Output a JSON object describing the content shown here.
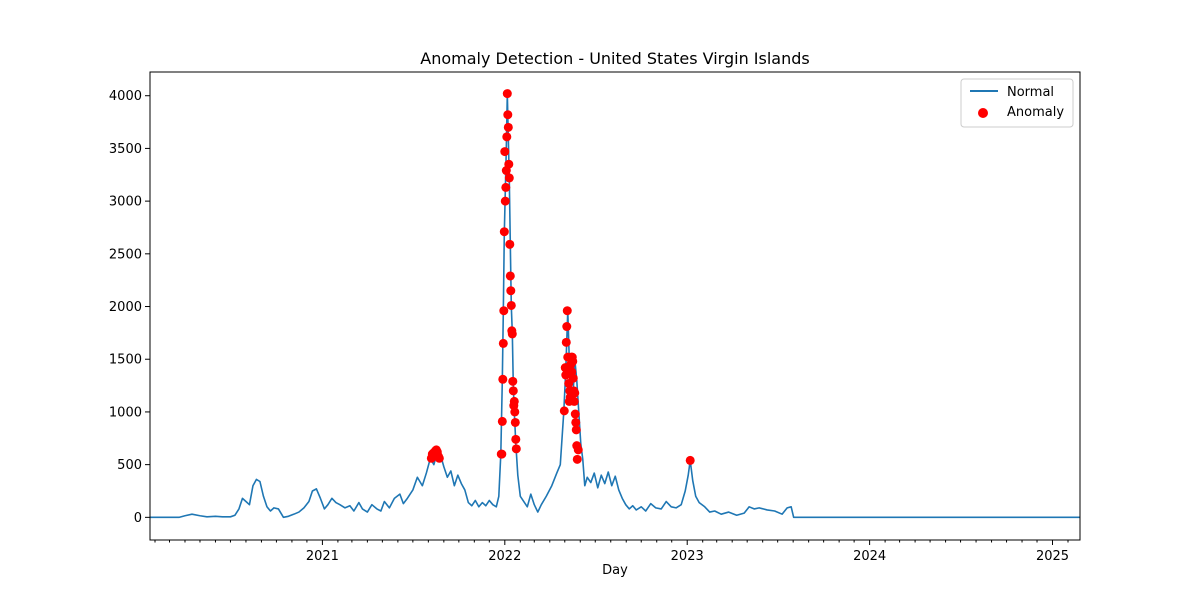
{
  "chart_data": {
    "type": "line",
    "title": "Anomaly Detection - United States Virgin Islands",
    "xlabel": "Day",
    "ylabel": "",
    "x_axis": "date",
    "xlim": [
      "2020-01-22",
      "2025-02-25"
    ],
    "ylim": [
      -215,
      4225
    ],
    "x_ticks": [
      "2021",
      "2022",
      "2023",
      "2024",
      "2025"
    ],
    "y_ticks": [
      0,
      500,
      1000,
      1500,
      2000,
      2500,
      3000,
      3500,
      4000
    ],
    "grid": false,
    "legend": {
      "position": "upper right"
    },
    "colors": {
      "normal": "#1f77b4",
      "anomaly": "#ff0000"
    },
    "series": [
      {
        "name": "Normal",
        "kind": "line",
        "points": [
          [
            "2020-01-22",
            0
          ],
          [
            "2020-03-20",
            0
          ],
          [
            "2020-04-01",
            15
          ],
          [
            "2020-04-15",
            30
          ],
          [
            "2020-05-01",
            15
          ],
          [
            "2020-05-15",
            5
          ],
          [
            "2020-06-01",
            10
          ],
          [
            "2020-06-15",
            5
          ],
          [
            "2020-07-01",
            5
          ],
          [
            "2020-07-10",
            20
          ],
          [
            "2020-07-18",
            80
          ],
          [
            "2020-07-25",
            180
          ],
          [
            "2020-08-01",
            150
          ],
          [
            "2020-08-08",
            120
          ],
          [
            "2020-08-15",
            300
          ],
          [
            "2020-08-22",
            360
          ],
          [
            "2020-08-29",
            340
          ],
          [
            "2020-09-05",
            200
          ],
          [
            "2020-09-12",
            100
          ],
          [
            "2020-09-19",
            60
          ],
          [
            "2020-09-26",
            90
          ],
          [
            "2020-10-05",
            80
          ],
          [
            "2020-10-15",
            0
          ],
          [
            "2020-10-25",
            10
          ],
          [
            "2020-11-05",
            30
          ],
          [
            "2020-11-15",
            50
          ],
          [
            "2020-11-25",
            90
          ],
          [
            "2020-12-05",
            150
          ],
          [
            "2020-12-12",
            250
          ],
          [
            "2020-12-20",
            270
          ],
          [
            "2020-12-28",
            180
          ],
          [
            "2021-01-05",
            80
          ],
          [
            "2021-01-12",
            120
          ],
          [
            "2021-01-20",
            180
          ],
          [
            "2021-01-28",
            140
          ],
          [
            "2021-02-05",
            120
          ],
          [
            "2021-02-15",
            90
          ],
          [
            "2021-02-25",
            110
          ],
          [
            "2021-03-05",
            60
          ],
          [
            "2021-03-15",
            140
          ],
          [
            "2021-03-22",
            80
          ],
          [
            "2021-04-01",
            50
          ],
          [
            "2021-04-10",
            120
          ],
          [
            "2021-04-20",
            80
          ],
          [
            "2021-04-28",
            60
          ],
          [
            "2021-05-05",
            150
          ],
          [
            "2021-05-15",
            90
          ],
          [
            "2021-05-25",
            180
          ],
          [
            "2021-06-05",
            220
          ],
          [
            "2021-06-12",
            130
          ],
          [
            "2021-06-20",
            180
          ],
          [
            "2021-07-01",
            260
          ],
          [
            "2021-07-10",
            380
          ],
          [
            "2021-07-20",
            300
          ],
          [
            "2021-07-28",
            420
          ],
          [
            "2021-08-05",
            560
          ],
          [
            "2021-08-12",
            500
          ],
          [
            "2021-08-19",
            620
          ],
          [
            "2021-08-26",
            580
          ],
          [
            "2021-09-01",
            480
          ],
          [
            "2021-09-08",
            380
          ],
          [
            "2021-09-15",
            440
          ],
          [
            "2021-09-22",
            300
          ],
          [
            "2021-09-29",
            400
          ],
          [
            "2021-10-06",
            320
          ],
          [
            "2021-10-13",
            260
          ],
          [
            "2021-10-20",
            140
          ],
          [
            "2021-10-27",
            110
          ],
          [
            "2021-11-03",
            160
          ],
          [
            "2021-11-10",
            100
          ],
          [
            "2021-11-17",
            140
          ],
          [
            "2021-11-24",
            110
          ],
          [
            "2021-12-01",
            160
          ],
          [
            "2021-12-08",
            120
          ],
          [
            "2021-12-15",
            100
          ],
          [
            "2021-12-20",
            200
          ],
          [
            "2021-12-24",
            600
          ],
          [
            "2021-12-27",
            1300
          ],
          [
            "2021-12-29",
            1950
          ],
          [
            "2021-12-31",
            2700
          ],
          [
            "2022-01-02",
            3100
          ],
          [
            "2022-01-04",
            3500
          ],
          [
            "2022-01-06",
            4020
          ],
          [
            "2022-01-08",
            3600
          ],
          [
            "2022-01-10",
            3200
          ],
          [
            "2022-01-12",
            2590
          ],
          [
            "2022-01-14",
            2000
          ],
          [
            "2022-01-16",
            1750
          ],
          [
            "2022-01-18",
            1250
          ],
          [
            "2022-01-20",
            1000
          ],
          [
            "2022-01-23",
            700
          ],
          [
            "2022-01-27",
            400
          ],
          [
            "2022-02-01",
            200
          ],
          [
            "2022-02-08",
            150
          ],
          [
            "2022-02-15",
            100
          ],
          [
            "2022-02-22",
            220
          ],
          [
            "2022-03-01",
            120
          ],
          [
            "2022-03-08",
            50
          ],
          [
            "2022-03-15",
            120
          ],
          [
            "2022-03-25",
            200
          ],
          [
            "2022-04-05",
            300
          ],
          [
            "2022-04-15",
            420
          ],
          [
            "2022-04-22",
            500
          ],
          [
            "2022-04-29",
            1000
          ],
          [
            "2022-05-03",
            1400
          ],
          [
            "2022-05-07",
            1960
          ],
          [
            "2022-05-10",
            1500
          ],
          [
            "2022-05-13",
            1300
          ],
          [
            "2022-05-17",
            1100
          ],
          [
            "2022-05-21",
            1500
          ],
          [
            "2022-05-25",
            1300
          ],
          [
            "2022-05-29",
            1000
          ],
          [
            "2022-06-02",
            700
          ],
          [
            "2022-06-06",
            550
          ],
          [
            "2022-06-10",
            300
          ],
          [
            "2022-06-15",
            380
          ],
          [
            "2022-06-22",
            330
          ],
          [
            "2022-06-29",
            420
          ],
          [
            "2022-07-06",
            280
          ],
          [
            "2022-07-13",
            400
          ],
          [
            "2022-07-20",
            320
          ],
          [
            "2022-07-27",
            430
          ],
          [
            "2022-08-03",
            300
          ],
          [
            "2022-08-10",
            390
          ],
          [
            "2022-08-17",
            260
          ],
          [
            "2022-08-24",
            180
          ],
          [
            "2022-08-31",
            120
          ],
          [
            "2022-09-07",
            80
          ],
          [
            "2022-09-14",
            110
          ],
          [
            "2022-09-21",
            70
          ],
          [
            "2022-10-01",
            100
          ],
          [
            "2022-10-10",
            60
          ],
          [
            "2022-10-20",
            130
          ],
          [
            "2022-10-30",
            90
          ],
          [
            "2022-11-10",
            80
          ],
          [
            "2022-11-20",
            150
          ],
          [
            "2022-11-30",
            100
          ],
          [
            "2022-12-10",
            90
          ],
          [
            "2022-12-20",
            120
          ],
          [
            "2022-12-28",
            250
          ],
          [
            "2023-01-03",
            400
          ],
          [
            "2023-01-07",
            540
          ],
          [
            "2023-01-12",
            350
          ],
          [
            "2023-01-18",
            200
          ],
          [
            "2023-01-25",
            140
          ],
          [
            "2023-02-05",
            100
          ],
          [
            "2023-02-15",
            50
          ],
          [
            "2023-02-25",
            60
          ],
          [
            "2023-03-10",
            30
          ],
          [
            "2023-03-25",
            50
          ],
          [
            "2023-04-10",
            20
          ],
          [
            "2023-04-25",
            40
          ],
          [
            "2023-05-05",
            100
          ],
          [
            "2023-05-15",
            80
          ],
          [
            "2023-05-25",
            90
          ],
          [
            "2023-06-10",
            70
          ],
          [
            "2023-06-25",
            60
          ],
          [
            "2023-07-10",
            30
          ],
          [
            "2023-07-20",
            90
          ],
          [
            "2023-07-28",
            100
          ],
          [
            "2023-08-02",
            0
          ],
          [
            "2025-02-25",
            0
          ]
        ]
      },
      {
        "name": "Anomaly",
        "kind": "scatter",
        "points": [
          [
            "2021-08-07",
            560
          ],
          [
            "2021-08-09",
            600
          ],
          [
            "2021-08-11",
            610
          ],
          [
            "2021-08-13",
            590
          ],
          [
            "2021-08-15",
            630
          ],
          [
            "2021-08-17",
            640
          ],
          [
            "2021-08-19",
            620
          ],
          [
            "2021-08-21",
            580
          ],
          [
            "2021-08-23",
            560
          ],
          [
            "2021-12-25",
            600
          ],
          [
            "2021-12-26",
            600
          ],
          [
            "2021-12-27",
            910
          ],
          [
            "2021-12-28",
            1310
          ],
          [
            "2021-12-29",
            1650
          ],
          [
            "2021-12-30",
            1960
          ],
          [
            "2021-12-31",
            2710
          ],
          [
            "2022-01-01",
            3470
          ],
          [
            "2022-01-02",
            3000
          ],
          [
            "2022-01-03",
            3130
          ],
          [
            "2022-01-04",
            3290
          ],
          [
            "2022-01-05",
            3610
          ],
          [
            "2022-01-06",
            4020
          ],
          [
            "2022-01-07",
            3820
          ],
          [
            "2022-01-08",
            3700
          ],
          [
            "2022-01-09",
            3350
          ],
          [
            "2022-01-10",
            3220
          ],
          [
            "2022-01-11",
            2590
          ],
          [
            "2022-01-12",
            2290
          ],
          [
            "2022-01-13",
            2150
          ],
          [
            "2022-01-14",
            2010
          ],
          [
            "2022-01-15",
            1770
          ],
          [
            "2022-01-16",
            1740
          ],
          [
            "2022-01-17",
            1290
          ],
          [
            "2022-01-18",
            1200
          ],
          [
            "2022-01-19",
            1060
          ],
          [
            "2022-01-20",
            1100
          ],
          [
            "2022-01-21",
            1000
          ],
          [
            "2022-01-22",
            900
          ],
          [
            "2022-01-23",
            740
          ],
          [
            "2022-01-24",
            650
          ],
          [
            "2022-04-30",
            1010
          ],
          [
            "2022-05-02",
            1420
          ],
          [
            "2022-05-03",
            1350
          ],
          [
            "2022-05-04",
            1660
          ],
          [
            "2022-05-05",
            1810
          ],
          [
            "2022-05-06",
            1960
          ],
          [
            "2022-05-07",
            1520
          ],
          [
            "2022-05-08",
            1400
          ],
          [
            "2022-05-09",
            1270
          ],
          [
            "2022-05-10",
            1100
          ],
          [
            "2022-05-11",
            1200
          ],
          [
            "2022-05-12",
            1140
          ],
          [
            "2022-05-13",
            1450
          ],
          [
            "2022-05-14",
            1520
          ],
          [
            "2022-05-15",
            1380
          ],
          [
            "2022-05-16",
            1520
          ],
          [
            "2022-05-17",
            1480
          ],
          [
            "2022-05-18",
            1320
          ],
          [
            "2022-05-19",
            1200
          ],
          [
            "2022-05-20",
            1100
          ],
          [
            "2022-05-21",
            1180
          ],
          [
            "2022-05-22",
            980
          ],
          [
            "2022-05-23",
            900
          ],
          [
            "2022-05-24",
            830
          ],
          [
            "2022-05-25",
            680
          ],
          [
            "2022-05-26",
            550
          ],
          [
            "2022-05-28",
            640
          ],
          [
            "2023-01-07",
            540
          ]
        ]
      }
    ]
  }
}
